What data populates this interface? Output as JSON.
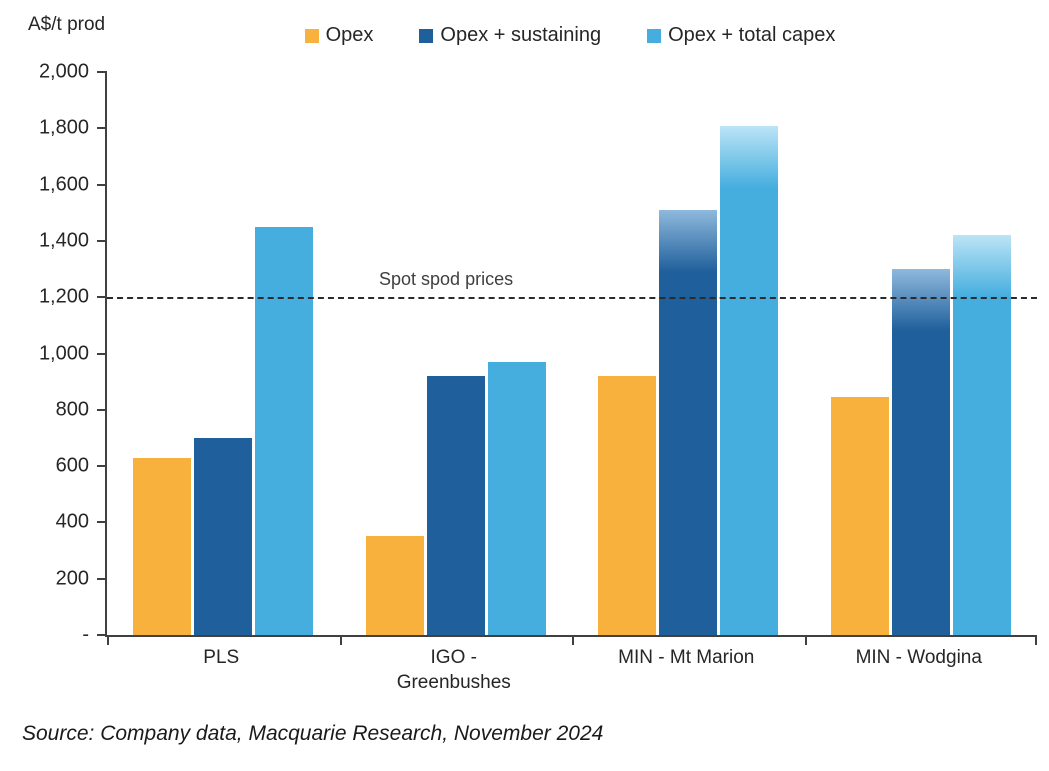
{
  "source": "Source: Company data, Macquarie Research, November 2024",
  "chart_data": {
    "type": "bar",
    "axis_title": "A$/t prod",
    "title": "",
    "xlabel": "",
    "ylabel": "A$/t prod",
    "ylim": [
      0,
      2000
    ],
    "grid": false,
    "legend_position": "top",
    "yticks": [
      {
        "value": 2000,
        "label": "2,000"
      },
      {
        "value": 1800,
        "label": "1,800"
      },
      {
        "value": 1600,
        "label": "1,600"
      },
      {
        "value": 1400,
        "label": "1,400"
      },
      {
        "value": 1200,
        "label": "1,200"
      },
      {
        "value": 1000,
        "label": "1,000"
      },
      {
        "value": 800,
        "label": "800"
      },
      {
        "value": 600,
        "label": "600"
      },
      {
        "value": 400,
        "label": "400"
      },
      {
        "value": 200,
        "label": "200"
      },
      {
        "value": 0,
        "label": "-"
      }
    ],
    "categories": [
      {
        "name": "PLS",
        "lines": [
          "PLS"
        ]
      },
      {
        "name": "IGO - Greenbushes",
        "lines": [
          "IGO -",
          "Greenbushes"
        ]
      },
      {
        "name": "MIN - Mt Marion",
        "lines": [
          "MIN - Mt Marion"
        ]
      },
      {
        "name": "MIN - Wodgina",
        "lines": [
          "MIN - Wodgina"
        ]
      }
    ],
    "series": [
      {
        "name": "Opex",
        "color": "#F9B13E",
        "fade_color": "#FDE3B5",
        "values": [
          630,
          350,
          920,
          845
        ],
        "fade": [
          false,
          false,
          false,
          false
        ]
      },
      {
        "name": "Opex + sustaining",
        "color": "#1F5F9B",
        "fade_color": "#8FB9DD",
        "values": [
          700,
          920,
          1510,
          1300
        ],
        "fade": [
          false,
          false,
          true,
          true
        ]
      },
      {
        "name": "Opex + total capex",
        "color": "#45AEDF",
        "fade_color": "#BCE4F6",
        "values": [
          1450,
          970,
          1810,
          1420
        ],
        "fade": [
          false,
          false,
          true,
          true
        ]
      }
    ],
    "annotation": {
      "label": "Spot spod prices",
      "value": 1200
    }
  }
}
